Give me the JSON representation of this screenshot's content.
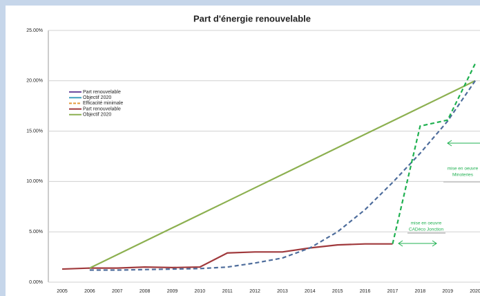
{
  "chart_data": {
    "type": "line",
    "title": "Part d'énergie renouvelable",
    "categories": [
      "2005",
      "2006",
      "2007",
      "2008",
      "2009",
      "2010",
      "2011",
      "2012",
      "2013",
      "2014",
      "2015",
      "2016",
      "2017",
      "2018",
      "2019",
      "2020"
    ],
    "series": [
      {
        "name": "Part renouvelable",
        "color": "#a0393c",
        "dash": false,
        "values": [
          1.3,
          1.4,
          1.4,
          1.5,
          1.45,
          1.5,
          2.9,
          3.0,
          3.0,
          3.4,
          3.7,
          3.8,
          3.8,
          null,
          null,
          null
        ]
      },
      {
        "name": "Objectif 2020",
        "color": "#8cb050",
        "dash": false,
        "values": [
          null,
          1.4,
          2.73,
          4.06,
          5.39,
          6.71,
          8.04,
          9.37,
          10.7,
          12.03,
          13.36,
          14.69,
          16.01,
          17.34,
          18.67,
          20.0
        ]
      },
      {
        "color": "#4e6d9c",
        "dash": true,
        "values": [
          null,
          1.2,
          1.2,
          1.25,
          1.3,
          1.35,
          1.5,
          1.9,
          2.4,
          3.4,
          5.0,
          7.2,
          9.9,
          12.8,
          16.0,
          20.0
        ]
      },
      {
        "color": "#1fb050",
        "dash": true,
        "values": [
          null,
          null,
          null,
          null,
          null,
          null,
          null,
          null,
          null,
          null,
          null,
          null,
          3.8,
          15.5,
          16.1,
          21.7
        ]
      }
    ],
    "legend": [
      {
        "name": "Part renouvelable",
        "color": "#6e4a9e",
        "dash": false
      },
      {
        "name": "Objectif 2020",
        "color": "#3f9fc0",
        "dash": false
      },
      {
        "name": "Efficacité minimale",
        "color": "#e39a3b",
        "dash": true
      },
      {
        "name": "Part renouvelable",
        "color": "#a0393c",
        "dash": false
      },
      {
        "name": "Objectif 2020",
        "color": "#8cb050",
        "dash": false
      }
    ],
    "annotations": [
      {
        "lines": [
          "mise en oeuvre",
          "CADéco Jonction"
        ]
      },
      {
        "lines": [
          "mise en oeuvre",
          "Minoteries"
        ]
      }
    ],
    "ylim": [
      0,
      25
    ],
    "yticks": [
      {
        "value": 0,
        "label": "0.00%"
      },
      {
        "value": 5,
        "label": "5.00%"
      },
      {
        "value": 10,
        "label": "10.00%"
      },
      {
        "value": 15,
        "label": "15.00%"
      },
      {
        "value": 20,
        "label": "20.00%"
      },
      {
        "value": 25,
        "label": "25.00%"
      }
    ],
    "grid": true
  }
}
